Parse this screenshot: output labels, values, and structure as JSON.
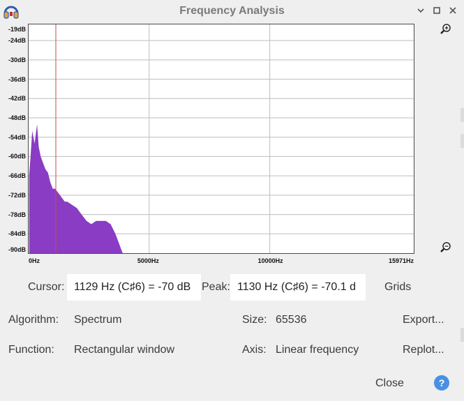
{
  "window": {
    "title": "Frequency Analysis"
  },
  "chart_data": {
    "type": "area",
    "ylim": [
      -90,
      -19
    ],
    "xlim": [
      0,
      15971
    ],
    "y_ticks": [
      "-19dB",
      "-24dB",
      "-30dB",
      "-36dB",
      "-42dB",
      "-48dB",
      "-54dB",
      "-60dB",
      "-66dB",
      "-72dB",
      "-78dB",
      "-84dB",
      "-90dB"
    ],
    "x_ticks": [
      "0Hz",
      "5000Hz",
      "10000Hz",
      "15971Hz"
    ],
    "grid": true,
    "cursor_hz": 1129,
    "x": [
      20,
      80,
      150,
      250,
      350,
      420,
      500,
      600,
      700,
      800,
      900,
      1000,
      1100,
      1200,
      1300,
      1400,
      1500,
      1600,
      1800,
      2000,
      2200,
      2400,
      2600,
      2800,
      3000,
      3200,
      3400,
      3600,
      3800,
      3900
    ],
    "y": [
      -66,
      -60,
      -52,
      -56,
      -50,
      -57,
      -60,
      -62,
      -64,
      -65,
      -68,
      -70,
      -70,
      -71,
      -72,
      -73,
      -74,
      -74,
      -75,
      -76,
      -78,
      -80,
      -81,
      -80,
      -80,
      -80,
      -81,
      -84,
      -88,
      -90
    ],
    "series_color": "#8a3cc4",
    "cursor_color": "#c0504d"
  },
  "cursor": {
    "label": "Cursor:",
    "value": "1129 Hz (C♯6) = -70 dB"
  },
  "peak": {
    "label": "Peak:",
    "value": "1130 Hz (C♯6) = -70.1 d"
  },
  "grids_label": "Grids",
  "algorithm": {
    "label": "Algorithm:",
    "value": "Spectrum"
  },
  "size": {
    "label": "Size:",
    "value": "65536"
  },
  "function": {
    "label": "Function:",
    "value": "Rectangular window"
  },
  "axis": {
    "label": "Axis:",
    "value": "Linear frequency"
  },
  "buttons": {
    "export": "Export...",
    "replot": "Replot...",
    "close": "Close",
    "help": "?"
  },
  "icons": {
    "app": "headphones-icon",
    "zoom_in": "zoom-in-icon",
    "zoom_out": "zoom-out-icon",
    "minimize": "minimize-icon",
    "maximize": "maximize-icon",
    "close": "close-icon"
  }
}
